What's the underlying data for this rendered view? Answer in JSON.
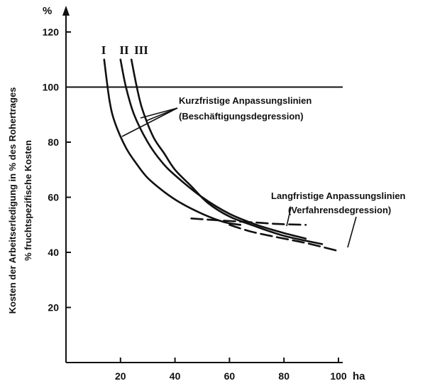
{
  "chart_data": {
    "type": "line",
    "y_unit": "%",
    "x_unit": "ha",
    "ylabel_lines": [
      "Kosten der Arbeitserledigung in % des Rohertrages",
      "% fruchtspezifische Kosten"
    ],
    "xlim": [
      0,
      100
    ],
    "ylim": [
      0,
      130
    ],
    "xticks": [
      20,
      40,
      60,
      80,
      100
    ],
    "yticks": [
      20,
      40,
      60,
      80,
      100,
      120
    ],
    "reference_line": 100,
    "curve_labels": [
      "I",
      "II",
      "III"
    ],
    "series": [
      {
        "name": "I",
        "style": "solid",
        "x": [
          14,
          16,
          18,
          22,
          26,
          30,
          36,
          42,
          50,
          58,
          64
        ],
        "y": [
          110,
          95,
          87,
          78,
          72,
          67,
          62,
          58,
          54,
          51,
          50
        ]
      },
      {
        "name": "II",
        "style": "solid",
        "x": [
          20,
          22,
          25,
          30,
          35,
          40,
          50,
          60,
          70,
          80,
          88
        ],
        "y": [
          110,
          100,
          90,
          80,
          73,
          68,
          60,
          54,
          50,
          47,
          45
        ]
      },
      {
        "name": "III",
        "style": "solid",
        "x": [
          24,
          26,
          28,
          32,
          36,
          40,
          46,
          52,
          60,
          68,
          80,
          94
        ],
        "y": [
          110,
          100,
          92,
          82,
          76,
          70,
          64,
          58,
          53,
          50,
          46,
          43
        ]
      },
      {
        "name": "",
        "style": "dashed",
        "x": [
          46,
          58,
          70,
          78,
          88
        ],
        "y": [
          52.3,
          51.5,
          50.8,
          50.3,
          50
        ]
      },
      {
        "name": "",
        "style": "dashed",
        "x": [
          60,
          68,
          78,
          88,
          100
        ],
        "y": [
          50,
          47.5,
          45.4,
          43.4,
          40.5
        ]
      }
    ],
    "annotations": [
      {
        "lines": [
          "Kurzfristige Anpassungslinien",
          "(Beschäftigungsdegression)"
        ]
      },
      {
        "lines": [
          "Langfristige Anpassungslinien",
          "(Verfahrensdegression)"
        ]
      }
    ],
    "grid": false,
    "legend": "none"
  }
}
